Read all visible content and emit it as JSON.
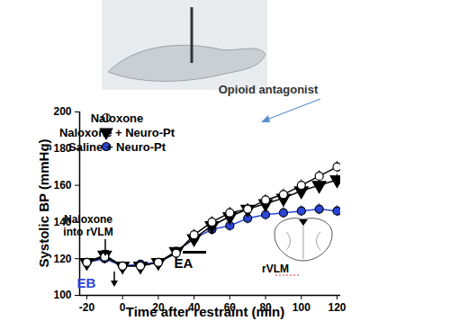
{
  "chart_data": {
    "type": "line",
    "x": [
      -20,
      -10,
      0,
      10,
      20,
      30,
      40,
      50,
      60,
      70,
      80,
      90,
      100,
      110,
      120
    ],
    "series": [
      {
        "name": "Naloxone",
        "color": "#000000",
        "marker": "open circle",
        "values": [
          118,
          121,
          116,
          116,
          118,
          123,
          133,
          140,
          145,
          147,
          152,
          155,
          160,
          165,
          170
        ],
        "errors": [
          2,
          2,
          2,
          2,
          2,
          2,
          3,
          3,
          3,
          3,
          3,
          3,
          3,
          3,
          3
        ]
      },
      {
        "name": "Naloxone + Neuro-Pt",
        "color": "#000000",
        "marker": "triangle-down",
        "values": [
          118,
          122,
          116,
          116,
          118,
          124,
          131,
          138,
          143,
          147,
          150,
          153,
          157,
          160,
          163
        ],
        "errors": [
          2,
          2,
          2,
          2,
          2,
          2,
          3,
          3,
          3,
          3,
          3,
          3,
          3,
          3,
          3
        ]
      },
      {
        "name": "Saline + Neuro-Pt",
        "color": "#2a46d8",
        "marker": "circle",
        "values": [
          118,
          120,
          116,
          117,
          118,
          124,
          131,
          136,
          138,
          142,
          144,
          145,
          146,
          147,
          146
        ],
        "errors": [
          2,
          2,
          2,
          2,
          2,
          2,
          3,
          3,
          3,
          3,
          3,
          3,
          3,
          3,
          3
        ]
      }
    ],
    "xlim": [
      -24,
      122
    ],
    "ylim": [
      100,
      200
    ],
    "xticks": [
      -20,
      0,
      20,
      40,
      60,
      80,
      100,
      120
    ],
    "yticks": [
      100,
      120,
      140,
      160,
      180,
      200
    ],
    "xlabel": "Time after restraint (min)",
    "ylabel": "Systolic BP (mmHg)",
    "legend": "top-left",
    "annotations": [
      "Opioid antagonist",
      "Naloxone into rVLM",
      "EB",
      "EA",
      "rVLM"
    ]
  }
}
